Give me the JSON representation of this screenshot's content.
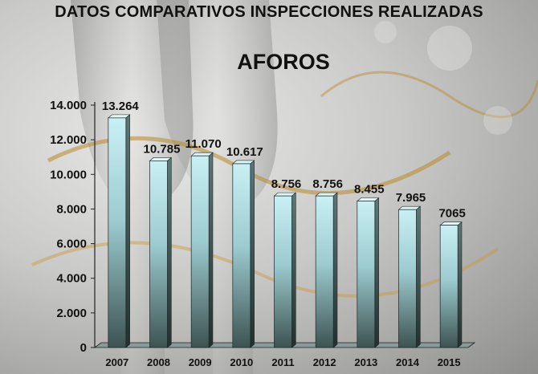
{
  "chart_data": {
    "type": "bar",
    "title": "DATOS COMPARATIVOS INSPECCIONES REALIZADAS",
    "subtitle": "AFOROS",
    "categories": [
      "2007",
      "2008",
      "2009",
      "2010",
      "2011",
      "2012",
      "2013",
      "2014",
      "2015"
    ],
    "values": [
      13264,
      10785,
      11070,
      10617,
      8756,
      8756,
      8455,
      7965,
      7065
    ],
    "data_labels": [
      "13.264",
      "10.785",
      "11.070",
      "10.617",
      "8.756",
      "8.756",
      "8.455",
      "7.965",
      "7065"
    ],
    "y_ticks": [
      "0",
      "2.000",
      "4.000",
      "6.000",
      "8.000",
      "10.000",
      "12.000",
      "14.000"
    ],
    "ylim": [
      0,
      14000
    ],
    "grid": false,
    "legend": "none",
    "colors": {
      "bar_top": "#c9f0f4",
      "bar_mid": "#9ccbd0",
      "bar_bottom": "#3d5351",
      "bar_side": "#2e3e3c",
      "bar_cap": "#ddf6f8"
    }
  }
}
